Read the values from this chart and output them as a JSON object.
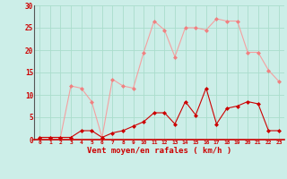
{
  "rafales": [
    0.5,
    0.5,
    0.5,
    12,
    11.5,
    8.5,
    0.5,
    13.5,
    12,
    11.5,
    19.5,
    26.5,
    24.5,
    18.5,
    25,
    25,
    24.5,
    27,
    26.5,
    26.5,
    19.5,
    19.5,
    15.5,
    13
  ],
  "vent_moyen": [
    0.5,
    0.5,
    0.5,
    0.5,
    2,
    2,
    0.5,
    1.5,
    2,
    3,
    4,
    6,
    6,
    3.5,
    8.5,
    5.5,
    11.5,
    3.5,
    7,
    7.5,
    8.5,
    8,
    2,
    2
  ],
  "x": [
    0,
    1,
    2,
    3,
    4,
    5,
    6,
    7,
    8,
    9,
    10,
    11,
    12,
    13,
    14,
    15,
    16,
    17,
    18,
    19,
    20,
    21,
    22,
    23
  ],
  "xlabel": "Vent moyen/en rafales ( km/h )",
  "ylim": [
    0,
    30
  ],
  "yticks": [
    0,
    5,
    10,
    15,
    20,
    25,
    30
  ],
  "bg_color": "#cceee8",
  "grid_color": "#aaddcc",
  "line_color_rafales": "#f4a0a0",
  "line_color_vent": "#cc0000",
  "marker_color_rafales": "#f08080",
  "marker_color_vent": "#cc0000",
  "tick_color": "#cc0000",
  "xlabel_color": "#cc0000"
}
